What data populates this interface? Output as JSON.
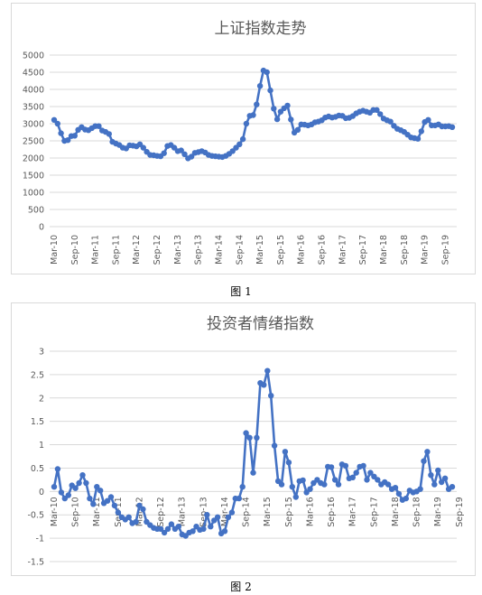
{
  "figures": [
    {
      "caption": "图 1"
    },
    {
      "caption": "图 2"
    }
  ],
  "colors": {
    "series": "#4472c4",
    "grid": "#d9d9d9",
    "text": "#595959",
    "title": "#595959"
  },
  "chart_data": [
    {
      "type": "line",
      "title": "上证指数走势",
      "xlabel": "",
      "ylabel": "",
      "ylim": [
        0,
        5000
      ],
      "yticks": [
        0,
        500,
        1000,
        1500,
        2000,
        2500,
        3000,
        3500,
        4000,
        4500,
        5000
      ],
      "grid": true,
      "legend": "none",
      "x_start": "Mar-10",
      "x_tick_labels": [
        "Mar-10",
        "Sep-10",
        "Mar-11",
        "Sep-11",
        "Mar-12",
        "Sep-12",
        "Mar-13",
        "Sep-13",
        "Mar-14",
        "Sep-14",
        "Mar-15",
        "Sep-15",
        "Mar-16",
        "Sep-16",
        "Mar-17",
        "Sep-17",
        "Mar-18",
        "Sep-18",
        "Mar-19",
        "Sep-19"
      ],
      "series": [
        {
          "values": [
            3110,
            3000,
            2720,
            2500,
            2520,
            2640,
            2650,
            2820,
            2900,
            2830,
            2810,
            2870,
            2930,
            2930,
            2800,
            2760,
            2700,
            2470,
            2420,
            2380,
            2300,
            2280,
            2370,
            2360,
            2340,
            2400,
            2300,
            2180,
            2090,
            2080,
            2060,
            2050,
            2140,
            2350,
            2380,
            2300,
            2200,
            2220,
            2110,
            1990,
            2040,
            2150,
            2170,
            2200,
            2160,
            2090,
            2060,
            2050,
            2040,
            2030,
            2060,
            2120,
            2200,
            2300,
            2400,
            2550,
            3000,
            3230,
            3250,
            3560,
            4100,
            4550,
            4500,
            3970,
            3440,
            3130,
            3350,
            3450,
            3530,
            3120,
            2740,
            2820,
            2980,
            2970,
            2950,
            2980,
            3040,
            3060,
            3100,
            3180,
            3210,
            3180,
            3200,
            3240,
            3230,
            3160,
            3170,
            3220,
            3300,
            3350,
            3380,
            3350,
            3320,
            3400,
            3400,
            3280,
            3150,
            3100,
            3060,
            2940,
            2850,
            2810,
            2760,
            2680,
            2600,
            2580,
            2560,
            2780,
            3050,
            3110,
            2950,
            2950,
            2980,
            2920,
            2920,
            2930,
            2900
          ]
        }
      ]
    },
    {
      "type": "line",
      "title": "投资者情绪指数",
      "xlabel": "",
      "ylabel": "",
      "ylim": [
        -1.5,
        3
      ],
      "yticks": [
        -1.5,
        -1,
        -0.5,
        0,
        0.5,
        1,
        1.5,
        2,
        2.5,
        3
      ],
      "grid": true,
      "legend": "none",
      "x_start": "Mar-10",
      "x_tick_labels": [
        "Mar-10",
        "Sep-10",
        "Mar-11",
        "Sep-11",
        "Mar-12",
        "Sep-12",
        "Mar-13",
        "Sep-13",
        "Mar-14",
        "Sep-14",
        "Mar-15",
        "Sep-15",
        "Mar-16",
        "Sep-16",
        "Mar-17",
        "Sep-17",
        "Mar-18",
        "Sep-18",
        "Mar-19",
        "Sep-19"
      ],
      "series": [
        {
          "values": [
            0.1,
            0.48,
            -0.02,
            -0.15,
            -0.08,
            0.13,
            0.07,
            0.18,
            0.35,
            0.18,
            -0.15,
            -0.27,
            0.1,
            0.02,
            -0.25,
            -0.2,
            -0.12,
            -0.3,
            -0.45,
            -0.55,
            -0.6,
            -0.55,
            -0.68,
            -0.65,
            -0.3,
            -0.38,
            -0.65,
            -0.72,
            -0.78,
            -0.8,
            -0.8,
            -0.88,
            -0.8,
            -0.7,
            -0.8,
            -0.75,
            -0.92,
            -0.95,
            -0.88,
            -0.85,
            -0.75,
            -0.82,
            -0.8,
            -0.5,
            -0.75,
            -0.62,
            -0.55,
            -0.9,
            -0.85,
            -0.55,
            -0.45,
            -0.15,
            -0.15,
            0.1,
            1.25,
            1.15,
            0.4,
            1.15,
            2.32,
            2.28,
            2.58,
            2.05,
            0.98,
            0.22,
            0.15,
            0.85,
            0.62,
            0.1,
            -0.12,
            0.22,
            0.24,
            -0.02,
            0.05,
            0.18,
            0.25,
            0.18,
            0.15,
            0.53,
            0.52,
            0.25,
            0.15,
            0.58,
            0.55,
            0.28,
            0.3,
            0.4,
            0.53,
            0.55,
            0.25,
            0.4,
            0.32,
            0.25,
            0.15,
            0.2,
            0.15,
            0.05,
            0.08,
            -0.05,
            -0.18,
            -0.15,
            0.02,
            -0.02,
            0.0,
            0.05,
            0.65,
            0.85,
            0.35,
            0.15,
            0.45,
            0.2,
            0.28,
            0.05,
            0.1
          ]
        }
      ]
    }
  ]
}
